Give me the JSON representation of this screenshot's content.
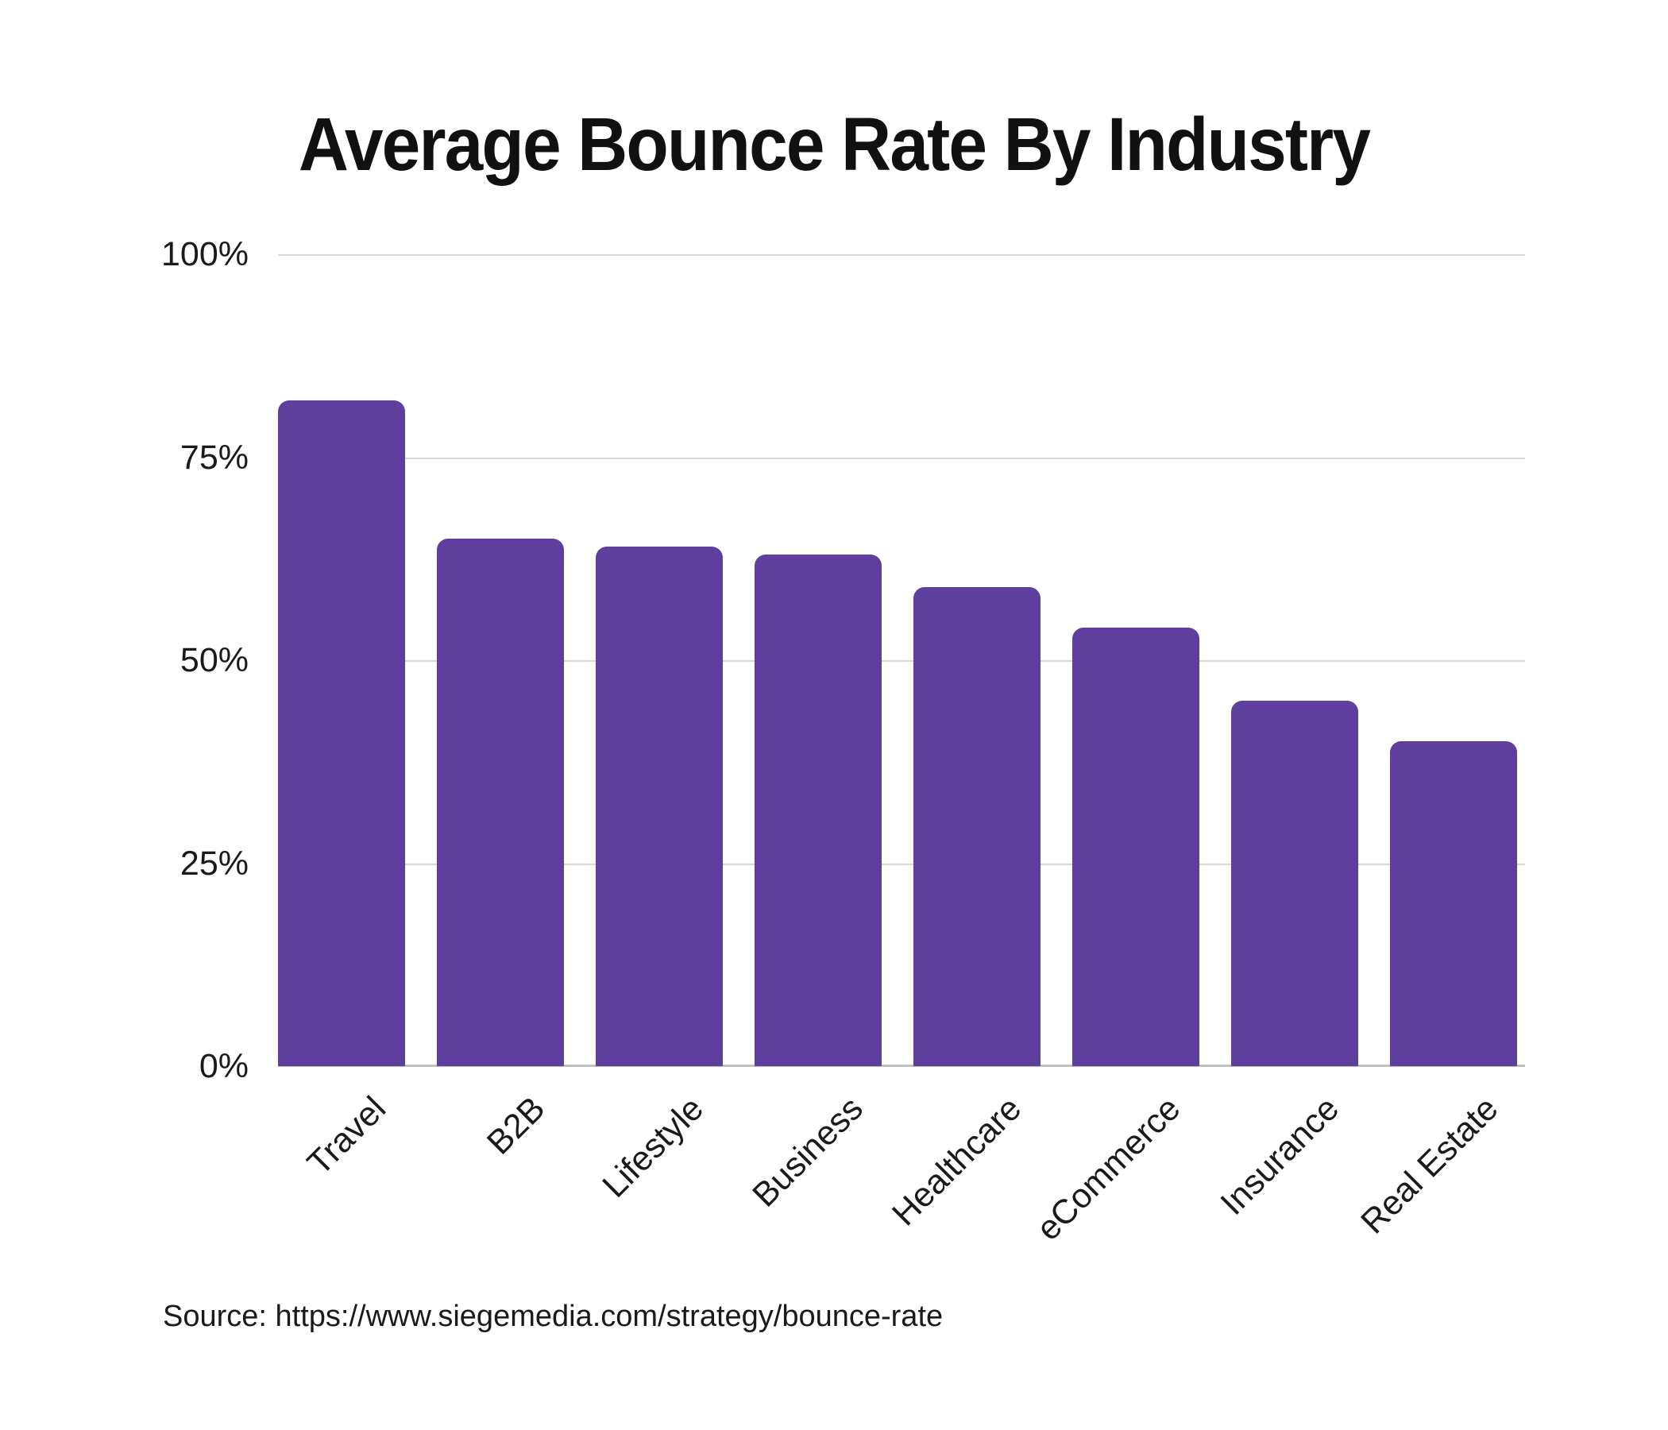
{
  "chart_data": {
    "type": "bar",
    "title": "Average Bounce Rate By Industry",
    "categories": [
      "Travel",
      "B2B",
      "Lifestyle",
      "Business",
      "Healthcare",
      "eCommerce",
      "Insurance",
      "Real Estate"
    ],
    "values": [
      82,
      65,
      64,
      63,
      59,
      54,
      45,
      40
    ],
    "unit": "%",
    "xlabel": "",
    "ylabel": "",
    "ylim": [
      0,
      100
    ],
    "y_tick_values": [
      0,
      25,
      50,
      75,
      100
    ],
    "y_tick_labels": [
      "0%",
      "25%",
      "50%",
      "75%",
      "100%"
    ],
    "grid": "horizontal",
    "legend_position": "none",
    "bar_color": "#5E3F9E"
  },
  "source": {
    "text": "Source: https://www.siegemedia.com/strategy/bounce-rate"
  },
  "colors": {
    "bar": "#5E3F9E",
    "gridline": "#D9D9D9",
    "axis_line": "#C0C0C0",
    "text": "#1A1A1A",
    "background": "#FFFFFF"
  }
}
